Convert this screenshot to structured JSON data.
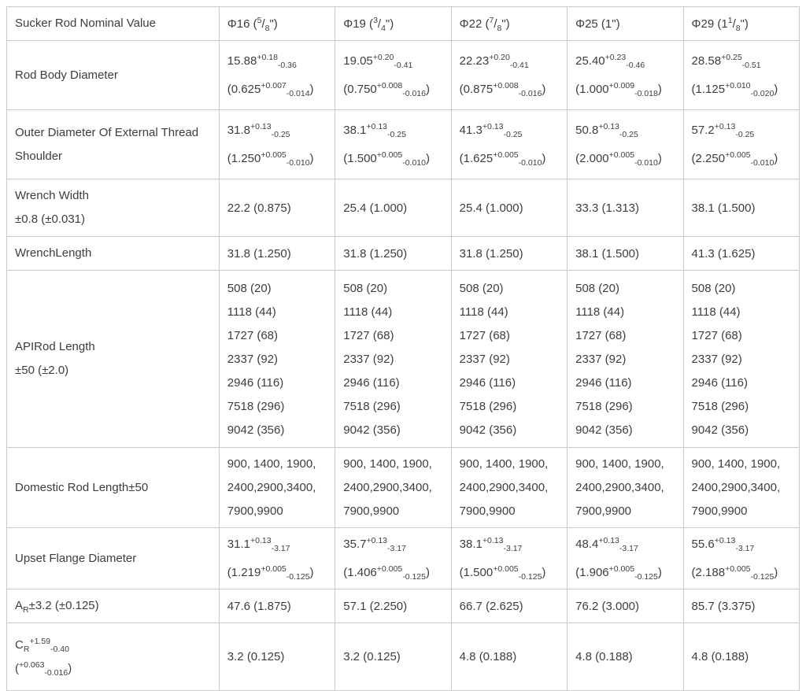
{
  "colors": {
    "border": "#c9c9c9",
    "text": "#3d3d3d",
    "background": "#ffffff"
  },
  "table": {
    "columns": [
      "Sucker Rod Nominal Value",
      "Φ16 (^{5}/_{8}\")",
      "Φ19 (^{3}/_{4}\")",
      "Φ22 (^{7}/_{8}\")",
      "Φ25 (1\")",
      "Φ29 (1^{1}/_{8}\")"
    ],
    "rows": [
      {
        "id": "rod-body-diameter",
        "tolerance_format": true,
        "label_lines": [
          "Rod Body Diameter"
        ],
        "cells": [
          [
            "15.88^{+0.18}_{-0.36}",
            "(0.625^{+0.007}_{-0.014})"
          ],
          [
            "19.05^{+0.20}_{-0.41}",
            "(0.750^{+0.008}_{-0.016})"
          ],
          [
            "22.23^{+0.20}_{-0.41}",
            "(0.875^{+0.008}_{-0.016})"
          ],
          [
            "25.40^{+0.23}_{-0.46}",
            "(1.000^{+0.009}_{-0.018})"
          ],
          [
            "28.58^{+0.25}_{-0.51}",
            "(1.125^{+0.010}_{-0.020})"
          ]
        ]
      },
      {
        "id": "outer-diameter-external-thread-shoulder",
        "tolerance_format": true,
        "label_lines": [
          "Outer Diameter Of External Thread Shoulder"
        ],
        "cells": [
          [
            "31.8^{+0.13}_{-0.25}",
            "(1.250^{+0.005}_{-0.010})"
          ],
          [
            "38.1^{+0.13}_{-0.25}",
            "(1.500^{+0.005}_{-0.010})"
          ],
          [
            "41.3^{+0.13}_{-0.25}",
            "(1.625^{+0.005}_{-0.010})"
          ],
          [
            "50.8^{+0.13}_{-0.25}",
            "(2.000^{+0.005}_{-0.010})"
          ],
          [
            "57.2^{+0.13}_{-0.25}",
            "(2.250^{+0.005}_{-0.010})"
          ]
        ]
      },
      {
        "id": "wrench-width",
        "tolerance_format": false,
        "label_lines": [
          "Wrench Width",
          "±0.8 (±0.031)"
        ],
        "cells": [
          [
            "22.2 (0.875)"
          ],
          [
            "25.4 (1.000)"
          ],
          [
            "25.4 (1.000)"
          ],
          [
            "33.3 (1.313)"
          ],
          [
            "38.1 (1.500)"
          ]
        ]
      },
      {
        "id": "wrench-length",
        "tolerance_format": false,
        "label_lines": [
          "WrenchLength"
        ],
        "cells": [
          [
            "31.8 (1.250)"
          ],
          [
            "31.8 (1.250)"
          ],
          [
            "31.8 (1.250)"
          ],
          [
            "38.1 (1.500)"
          ],
          [
            "41.3 (1.625)"
          ]
        ]
      },
      {
        "id": "api-rod-length",
        "tolerance_format": false,
        "label_lines": [
          "APIRod Length",
          "±50 (±2.0)"
        ],
        "cells": [
          [
            "508 (20)",
            "1118 (44)",
            "1727 (68)",
            "2337 (92)",
            "2946 (116)",
            "7518 (296)",
            "9042 (356)"
          ],
          [
            "508 (20)",
            "1118 (44)",
            "1727 (68)",
            "2337 (92)",
            "2946 (116)",
            "7518 (296)",
            "9042 (356)"
          ],
          [
            "508 (20)",
            "1118 (44)",
            "1727 (68)",
            "2337 (92)",
            "2946 (116)",
            "7518 (296)",
            "9042 (356)"
          ],
          [
            "508 (20)",
            "1118 (44)",
            "1727 (68)",
            "2337 (92)",
            "2946 (116)",
            "7518 (296)",
            "9042 (356)"
          ],
          [
            "508 (20)",
            "1118 (44)",
            "1727 (68)",
            "2337 (92)",
            "2946 (116)",
            "7518 (296)",
            "9042 (356)"
          ]
        ]
      },
      {
        "id": "domestic-rod-length",
        "tolerance_format": false,
        "label_lines": [
          "Domestic Rod Length±50"
        ],
        "cells": [
          [
            "900, 1400, 1900,",
            "2400,2900,3400,",
            "7900,9900"
          ],
          [
            "900, 1400, 1900,",
            "2400,2900,3400,",
            "7900,9900"
          ],
          [
            "900, 1400, 1900,",
            "2400,2900,3400,",
            "7900,9900"
          ],
          [
            "900, 1400, 1900,",
            "2400,2900,3400,",
            "7900,9900"
          ],
          [
            "900, 1400, 1900,",
            "2400,2900,3400,",
            "7900,9900"
          ]
        ]
      },
      {
        "id": "upset-flange-diameter",
        "tolerance_format": true,
        "label_lines": [
          "Upset Flange Diameter"
        ],
        "cells": [
          [
            "31.1^{+0.13}_{-3.17}",
            "(1.219^{+0.005}_{-0.125})"
          ],
          [
            "35.7^{+0.13}_{-3.17}",
            "(1.406^{+0.005}_{-0.125})"
          ],
          [
            "38.1^{+0.13}_{-3.17}",
            "(1.500^{+0.005}_{-0.125})"
          ],
          [
            "48.4^{+0.13}_{-3.17}",
            "(1.906^{+0.005}_{-0.125})"
          ],
          [
            "55.6^{+0.13}_{-3.17}",
            "(2.188^{+0.005}_{-0.125})"
          ]
        ]
      },
      {
        "id": "ar-dimension",
        "tolerance_format": false,
        "label_lines": [
          "A_{R}±3.2 (±0.125)"
        ],
        "cells": [
          [
            "47.6 (1.875)"
          ],
          [
            "57.1 (2.250)"
          ],
          [
            "66.7 (2.625)"
          ],
          [
            "76.2 (3.000)"
          ],
          [
            "85.7 (3.375)"
          ]
        ]
      },
      {
        "id": "cr-dimension",
        "tolerance_format": false,
        "label_lines": [
          "C_{R}^{+1.59}_{-0.40}",
          "(^{+0.063}_{-0.016})"
        ],
        "cells": [
          [
            "3.2 (0.125)"
          ],
          [
            "3.2 (0.125)"
          ],
          [
            "4.8 (0.188)"
          ],
          [
            "4.8 (0.188)"
          ],
          [
            "4.8 (0.188)"
          ]
        ]
      }
    ]
  }
}
